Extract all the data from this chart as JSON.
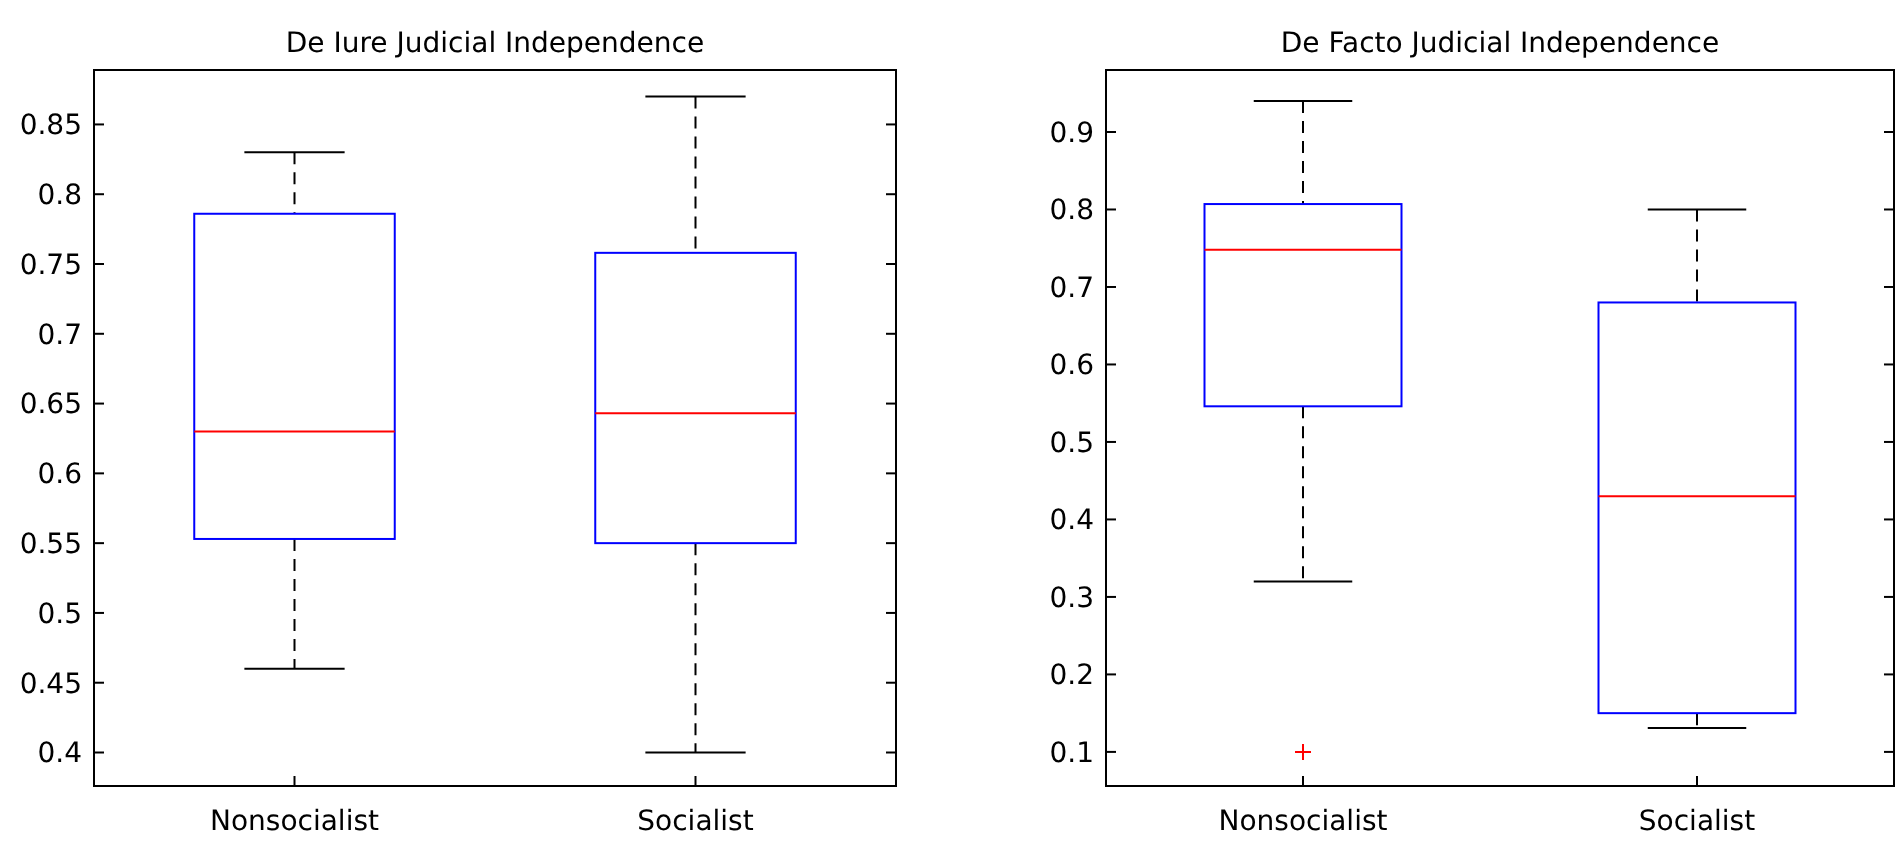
{
  "chart_data": [
    {
      "type": "box",
      "title": "De Iure Judicial Independence",
      "categories": [
        "Nonsocialist",
        "Socialist"
      ],
      "color": "#0000ff",
      "boxes": [
        {
          "low": 0.46,
          "q1": 0.553,
          "median": 0.63,
          "q3": 0.786,
          "high": 0.83
        },
        {
          "low": 0.4,
          "q1": 0.55,
          "median": 0.643,
          "q3": 0.758,
          "high": 0.87
        }
      ],
      "ylim": [
        0.376,
        0.889
      ],
      "yticks": [
        {
          "value": 0.4,
          "label": "0.4"
        },
        {
          "value": 0.45,
          "label": "0.45"
        },
        {
          "value": 0.5,
          "label": "0.5"
        },
        {
          "value": 0.55,
          "label": "0.55"
        },
        {
          "value": 0.6,
          "label": "0.6"
        },
        {
          "value": 0.65,
          "label": "0.65"
        },
        {
          "value": 0.7,
          "label": "0.7"
        },
        {
          "value": 0.75,
          "label": "0.75"
        },
        {
          "value": 0.8,
          "label": "0.8"
        },
        {
          "value": 0.85,
          "label": "0.85"
        }
      ]
    },
    {
      "type": "box",
      "title": "De Facto Judicial Independence",
      "categories": [
        "Nonsocialist",
        "Socialist"
      ],
      "color": "#0000ff",
      "marker": "cross",
      "boxes": [
        {
          "low": 0.32,
          "q1": 0.546,
          "median": 0.748,
          "q3": 0.807,
          "high": 0.94,
          "outliers": [
            0.1
          ]
        },
        {
          "low": 0.131,
          "q1": 0.15,
          "median": 0.43,
          "q3": 0.68,
          "high": 0.8
        }
      ],
      "ylim": [
        0.056,
        0.98
      ],
      "yticks": [
        {
          "value": 0.1,
          "label": "0.1"
        },
        {
          "value": 0.2,
          "label": "0.2"
        },
        {
          "value": 0.3,
          "label": "0.3"
        },
        {
          "value": 0.4,
          "label": "0.4"
        },
        {
          "value": 0.5,
          "label": "0.5"
        },
        {
          "value": 0.6,
          "label": "0.6"
        },
        {
          "value": 0.7,
          "label": "0.7"
        },
        {
          "value": 0.8,
          "label": "0.8"
        },
        {
          "value": 0.9,
          "label": "0.9"
        }
      ]
    }
  ]
}
